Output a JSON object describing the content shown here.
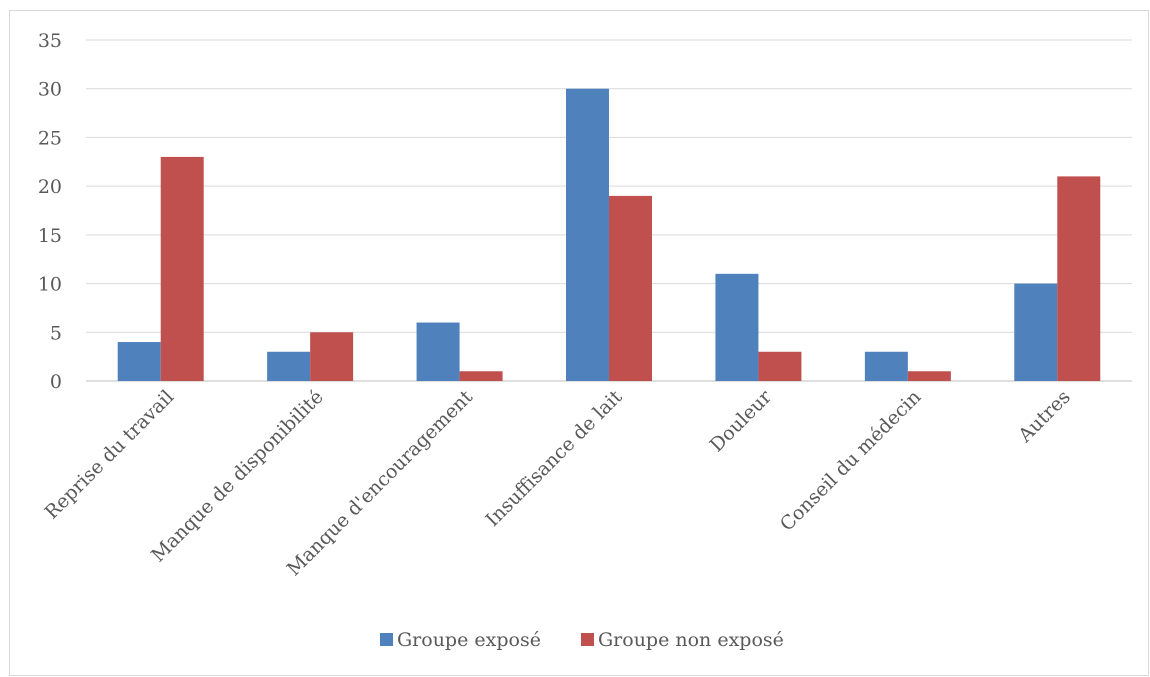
{
  "chart_data": {
    "type": "bar",
    "categories": [
      "Reprise du travail",
      "Manque de disponibilité",
      "Manque d'encouragement",
      "Insuffisance de lait",
      "Douleur",
      "Conseil du médecin",
      "Autres"
    ],
    "series": [
      {
        "name": "Groupe exposé",
        "values": [
          4,
          3,
          6,
          30,
          11,
          3,
          10
        ],
        "color": "#4f81bd"
      },
      {
        "name": "Groupe non exposé",
        "values": [
          23,
          5,
          1,
          19,
          3,
          1,
          21
        ],
        "color": "#c0504d"
      }
    ],
    "ylim": [
      0,
      35
    ],
    "yticks": [
      0,
      5,
      10,
      15,
      20,
      25,
      30,
      35
    ],
    "grid": true,
    "legend_position": "bottom",
    "xlabel": "",
    "ylabel": "",
    "title": ""
  }
}
